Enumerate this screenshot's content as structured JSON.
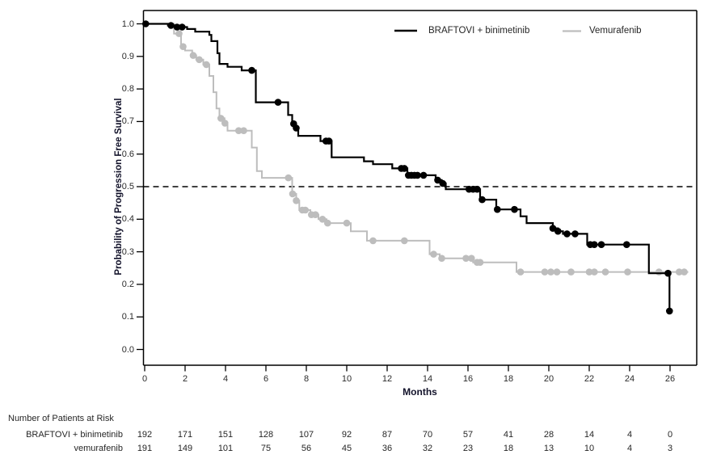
{
  "figure": {
    "legend": {
      "items": [
        {
          "label": "BRAFTOVI + binimetinib",
          "color": "#000000"
        },
        {
          "label": "Vemurafenib",
          "color": "#bdbdbd"
        }
      ]
    },
    "y_axis": {
      "title": "Probability of Progression Free Survival",
      "tick_labels": [
        "1.0",
        "0.9",
        "0.8",
        "0.7",
        "0.6",
        "0.5",
        "0.4",
        "0.3",
        "0.2",
        "0.1",
        "0.0"
      ],
      "tick_values": [
        1.0,
        0.9,
        0.8,
        0.7,
        0.6,
        0.5,
        0.4,
        0.3,
        0.2,
        0.1,
        0.0
      ]
    },
    "x_axis": {
      "title": "Months",
      "tick_labels": [
        "0",
        "2",
        "4",
        "6",
        "8",
        "10",
        "12",
        "14",
        "16",
        "18",
        "20",
        "22",
        "24",
        "26"
      ],
      "tick_values": [
        0,
        2,
        4,
        6,
        8,
        10,
        12,
        14,
        16,
        18,
        20,
        22,
        24,
        26
      ]
    },
    "frame_color": "#000000",
    "reference_line": {
      "value": 0.5,
      "style": "dashed",
      "color": "#000000"
    }
  },
  "chart_data": {
    "type": "line",
    "subtype": "kaplan-meier-step-curves",
    "title": "",
    "xlabel": "Months",
    "ylabel": "Probability of Progression Free Survival",
    "xlim": [
      0,
      27.3
    ],
    "ylim": [
      0.0,
      1.0
    ],
    "x_ticks": [
      0,
      2,
      4,
      6,
      8,
      10,
      12,
      14,
      16,
      18,
      20,
      22,
      24,
      26
    ],
    "y_ticks": [
      0.0,
      0.1,
      0.2,
      0.3,
      0.4,
      0.5,
      0.6,
      0.7,
      0.8,
      0.9,
      1.0
    ],
    "reference_line_y": 0.5,
    "grid": false,
    "legend_position": "top-right-inside",
    "series": [
      {
        "name": "BRAFTOVI + binimetinib",
        "color": "#000000",
        "line_width": 2.2,
        "steps": [
          [
            0,
            1.0
          ],
          [
            1.15,
            0.995
          ],
          [
            1.5,
            0.99
          ],
          [
            2.1,
            0.984
          ],
          [
            2.5,
            0.976
          ],
          [
            3.2,
            0.966
          ],
          [
            3.3,
            0.947
          ],
          [
            3.6,
            0.91
          ],
          [
            3.7,
            0.877
          ],
          [
            4.1,
            0.868
          ],
          [
            4.8,
            0.857
          ],
          [
            5.5,
            0.759
          ],
          [
            7.1,
            0.72
          ],
          [
            7.3,
            0.693
          ],
          [
            7.45,
            0.68
          ],
          [
            7.6,
            0.656
          ],
          [
            8.7,
            0.64
          ],
          [
            9.25,
            0.59
          ],
          [
            10.85,
            0.578
          ],
          [
            11.3,
            0.569
          ],
          [
            12.25,
            0.556
          ],
          [
            13.0,
            0.535
          ],
          [
            14.4,
            0.52
          ],
          [
            14.7,
            0.51
          ],
          [
            14.9,
            0.492
          ],
          [
            16.6,
            0.46
          ],
          [
            17.4,
            0.43
          ],
          [
            18.6,
            0.409
          ],
          [
            18.9,
            0.388
          ],
          [
            20.2,
            0.372
          ],
          [
            20.45,
            0.363
          ],
          [
            20.7,
            0.355
          ],
          [
            21.9,
            0.322
          ],
          [
            24.95,
            0.234
          ],
          [
            25.97,
            0.118
          ]
        ],
        "end_time": 26.05,
        "censor_marks": [
          [
            0.05,
            1.0
          ],
          [
            1.3,
            0.995
          ],
          [
            1.6,
            0.99
          ],
          [
            1.85,
            0.99
          ],
          [
            5.3,
            0.857
          ],
          [
            6.6,
            0.759
          ],
          [
            7.37,
            0.693
          ],
          [
            7.5,
            0.68
          ],
          [
            8.97,
            0.64
          ],
          [
            9.12,
            0.64
          ],
          [
            12.7,
            0.556
          ],
          [
            12.85,
            0.556
          ],
          [
            13.05,
            0.535
          ],
          [
            13.2,
            0.535
          ],
          [
            13.35,
            0.535
          ],
          [
            13.5,
            0.535
          ],
          [
            13.8,
            0.535
          ],
          [
            14.5,
            0.52
          ],
          [
            14.75,
            0.51
          ],
          [
            16.05,
            0.492
          ],
          [
            16.25,
            0.492
          ],
          [
            16.45,
            0.492
          ],
          [
            16.7,
            0.46
          ],
          [
            17.45,
            0.43
          ],
          [
            18.3,
            0.43
          ],
          [
            20.2,
            0.372
          ],
          [
            20.45,
            0.363
          ],
          [
            20.9,
            0.355
          ],
          [
            21.3,
            0.355
          ],
          [
            22.05,
            0.322
          ],
          [
            22.25,
            0.322
          ],
          [
            22.6,
            0.322
          ],
          [
            23.85,
            0.322
          ],
          [
            25.9,
            0.234
          ],
          [
            25.97,
            0.118
          ]
        ]
      },
      {
        "name": "Vemurafenib",
        "color": "#bdbdbd",
        "line_width": 2.0,
        "steps": [
          [
            0,
            1.0
          ],
          [
            1.45,
            0.97
          ],
          [
            1.8,
            0.93
          ],
          [
            2.0,
            0.918
          ],
          [
            2.35,
            0.903
          ],
          [
            2.55,
            0.89
          ],
          [
            2.9,
            0.875
          ],
          [
            3.2,
            0.84
          ],
          [
            3.4,
            0.79
          ],
          [
            3.55,
            0.74
          ],
          [
            3.7,
            0.71
          ],
          [
            3.95,
            0.695
          ],
          [
            4.1,
            0.672
          ],
          [
            5.3,
            0.62
          ],
          [
            5.55,
            0.548
          ],
          [
            5.8,
            0.527
          ],
          [
            7.3,
            0.478
          ],
          [
            7.5,
            0.457
          ],
          [
            7.65,
            0.428
          ],
          [
            8.2,
            0.414
          ],
          [
            8.6,
            0.4
          ],
          [
            9.0,
            0.388
          ],
          [
            10.2,
            0.363
          ],
          [
            11.0,
            0.334
          ],
          [
            14.1,
            0.2925
          ],
          [
            14.6,
            0.28
          ],
          [
            16.25,
            0.2675
          ],
          [
            18.4,
            0.238
          ]
        ],
        "end_time": 26.9,
        "censor_marks": [
          [
            1.7,
            0.97
          ],
          [
            1.9,
            0.93
          ],
          [
            2.4,
            0.903
          ],
          [
            2.7,
            0.89
          ],
          [
            3.05,
            0.875
          ],
          [
            3.77,
            0.71
          ],
          [
            3.97,
            0.695
          ],
          [
            4.65,
            0.672
          ],
          [
            4.9,
            0.672
          ],
          [
            7.11,
            0.527
          ],
          [
            7.32,
            0.478
          ],
          [
            7.5,
            0.457
          ],
          [
            7.8,
            0.428
          ],
          [
            7.95,
            0.428
          ],
          [
            8.25,
            0.414
          ],
          [
            8.45,
            0.414
          ],
          [
            8.8,
            0.4
          ],
          [
            9.05,
            0.388
          ],
          [
            10.0,
            0.388
          ],
          [
            11.3,
            0.334
          ],
          [
            12.85,
            0.334
          ],
          [
            14.3,
            0.2925
          ],
          [
            14.7,
            0.28
          ],
          [
            15.9,
            0.28
          ],
          [
            16.17,
            0.28
          ],
          [
            16.45,
            0.2675
          ],
          [
            16.6,
            0.2675
          ],
          [
            18.6,
            0.238
          ],
          [
            19.8,
            0.238
          ],
          [
            20.1,
            0.238
          ],
          [
            20.4,
            0.238
          ],
          [
            21.1,
            0.238
          ],
          [
            22.0,
            0.238
          ],
          [
            22.25,
            0.238
          ],
          [
            22.8,
            0.238
          ],
          [
            23.9,
            0.238
          ],
          [
            25.45,
            0.238
          ],
          [
            26.45,
            0.238
          ],
          [
            26.7,
            0.238
          ]
        ]
      }
    ]
  },
  "risk_table": {
    "title": "Number of Patients at Risk",
    "time_points": [
      0,
      2,
      4,
      6,
      8,
      10,
      12,
      14,
      16,
      18,
      20,
      22,
      24,
      26
    ],
    "rows": [
      {
        "label": "BRAFTOVI + binimetinib",
        "values": [
          "192",
          "171",
          "151",
          "128",
          "107",
          "92",
          "87",
          "70",
          "57",
          "41",
          "28",
          "14",
          "4",
          "0"
        ]
      },
      {
        "label": "vemurafenib",
        "values": [
          "191",
          "149",
          "101",
          "75",
          "56",
          "45",
          "36",
          "32",
          "23",
          "18",
          "13",
          "10",
          "4",
          "3"
        ]
      }
    ]
  }
}
